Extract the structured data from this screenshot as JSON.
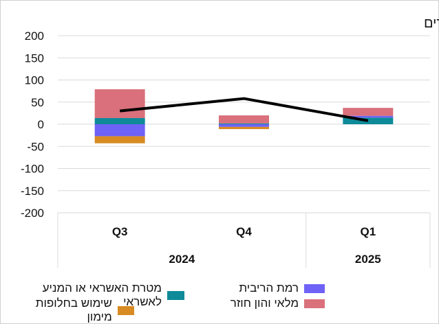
{
  "chart_data": {
    "type": "bar",
    "title": "עסקים קטנים וזעירים",
    "ylim": [
      -200,
      200
    ],
    "y_ticks": [
      "200",
      "150",
      "100",
      "50",
      "0",
      "-50",
      "-100",
      "-150",
      "-200"
    ],
    "y_tick_values": [
      200,
      150,
      100,
      50,
      0,
      -50,
      -100,
      -150,
      -200
    ],
    "categories": [
      "Q3",
      "Q4",
      "Q1"
    ],
    "years": [
      {
        "label": "2024",
        "span": [
          0,
          1
        ]
      },
      {
        "label": "2025",
        "span": [
          2,
          2
        ]
      }
    ],
    "series": [
      {
        "name": "מטרת האשראי או המניע לאשראי",
        "color": "#0e8a98",
        "values": [
          14,
          2,
          15
        ]
      },
      {
        "name": "רמת הריבית",
        "color": "#6f62f6",
        "values": [
          -27,
          -6,
          4
        ]
      },
      {
        "name": "שימוש בחלופות מימון",
        "color": "#d88b22",
        "values": [
          -16,
          -5,
          0
        ]
      },
      {
        "name": "מלאי והון חוזר",
        "color": "#d9707b",
        "values": [
          65,
          18,
          18
        ]
      }
    ],
    "line_series": {
      "name": "",
      "color": "#000000",
      "values": [
        30,
        58,
        8
      ]
    },
    "grid": true,
    "legend_position": "bottom"
  }
}
